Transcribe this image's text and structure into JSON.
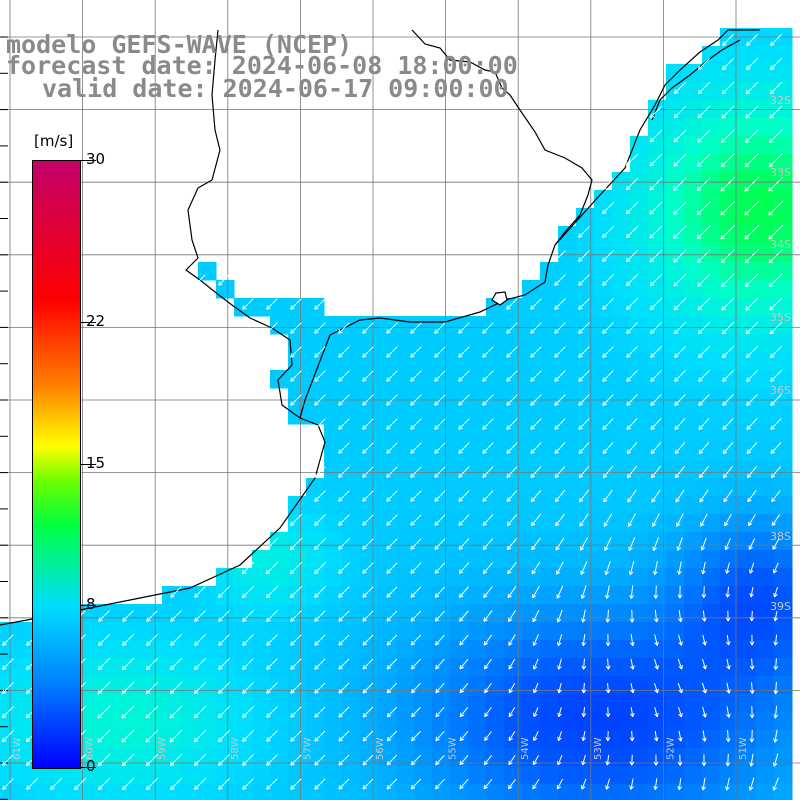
{
  "title": {
    "line1": "modelo GEFS-WAVE (NCEP)",
    "line2": "forecast date: 2024-06-08 18:00:00",
    "line3": "valid date: 2024-06-17 09:00:00"
  },
  "colorbar": {
    "unit": "[m/s]",
    "labels": [
      "30",
      "22",
      "15",
      "8",
      "0"
    ],
    "values": [
      30,
      22,
      15,
      8,
      0
    ],
    "min": 0,
    "max": 30,
    "colors": [
      "#0000ff",
      "#0080ff",
      "#00ddff",
      "#00ff40",
      "#66ff00",
      "#ffff00",
      "#ff8000",
      "#ff0000",
      "#c4006a"
    ]
  },
  "lat_labels": [
    "32S",
    "33S",
    "34S",
    "35S",
    "36S",
    "38S",
    "39S"
  ],
  "lon_labels": [
    "61W",
    "60W",
    "59W",
    "58W",
    "57W",
    "56W",
    "55W",
    "54W",
    "53W",
    "52W",
    "51W"
  ],
  "wind": {
    "main_direction": "southwest",
    "calm_region_direction": "south",
    "strongest_region": "northeast offshore",
    "weakest_region": "southeast"
  }
}
